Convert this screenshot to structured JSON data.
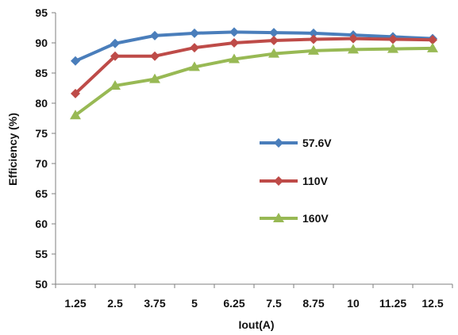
{
  "chart_data": {
    "type": "line",
    "title": "",
    "xlabel": "Iout(A)",
    "ylabel": "Efficiency (%)",
    "categories": [
      "1.25",
      "2.5",
      "3.75",
      "5",
      "6.25",
      "7.5",
      "8.75",
      "10",
      "11.25",
      "12.5"
    ],
    "y_ticks": [
      "50",
      "55",
      "60",
      "65",
      "70",
      "75",
      "80",
      "85",
      "90",
      "95"
    ],
    "ylim": [
      50,
      95
    ],
    "grid": false,
    "legend": "inside-center",
    "series": [
      {
        "name": "57.6V",
        "color": "#4a7ebb",
        "marker": "diamond",
        "values": [
          87.0,
          89.9,
          91.2,
          91.6,
          91.8,
          91.7,
          91.6,
          91.3,
          91.0,
          90.7
        ]
      },
      {
        "name": "110V",
        "color": "#be4b48",
        "marker": "diamond",
        "values": [
          81.6,
          87.8,
          87.8,
          89.2,
          90.0,
          90.4,
          90.6,
          90.7,
          90.6,
          90.5
        ]
      },
      {
        "name": "160V",
        "color": "#98b954",
        "marker": "triangle",
        "values": [
          78.0,
          82.9,
          84.0,
          86.0,
          87.3,
          88.2,
          88.7,
          88.9,
          89.0,
          89.1
        ]
      }
    ]
  }
}
